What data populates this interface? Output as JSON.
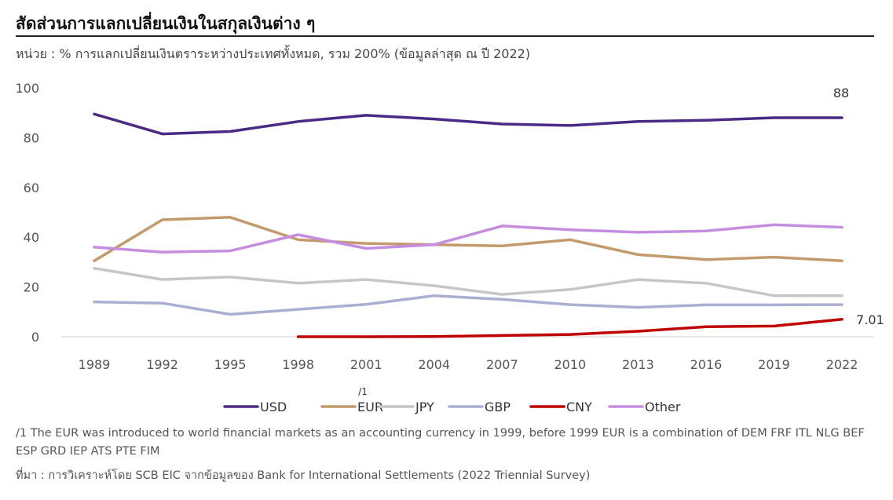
{
  "header": {
    "title": "สัดส่วนการแลกเปลี่ยนเงินในสกุลเงินต่าง ๆ",
    "subtitle": "หน่วย : % การแลกเปลี่ยนเงินตราระหว่างประเทศทั้งหมด, รวม 200% (ข้อมูลล่าสุด ณ ปี 2022)"
  },
  "chart_data": {
    "type": "line",
    "x": [
      "1989",
      "1992",
      "1995",
      "1998",
      "2001",
      "2004",
      "2007",
      "2010",
      "2013",
      "2016",
      "2019",
      "2022"
    ],
    "yticks": [
      0,
      20,
      40,
      60,
      80,
      100
    ],
    "ylim": [
      0,
      100
    ],
    "grid": false,
    "legend_position": "bottom",
    "series": [
      {
        "name": "USD",
        "color": "#4b2a86",
        "values": [
          89.5,
          81.5,
          82.5,
          86.5,
          89,
          87.5,
          85.5,
          84.9,
          86.5,
          87,
          88,
          88
        ]
      },
      {
        "name": "EUR",
        "color": "#c49a6c",
        "values": [
          30.5,
          47,
          48,
          39,
          37.5,
          37,
          36.5,
          39,
          33,
          31,
          32,
          30.5
        ]
      },
      {
        "name": "JPY",
        "color": "#c6c6c6",
        "values": [
          27.5,
          23,
          24,
          21.5,
          23,
          20.5,
          17,
          19,
          23,
          21.5,
          16.5,
          16.5
        ]
      },
      {
        "name": "GBP",
        "color": "#aaaed3",
        "values": [
          14,
          13.5,
          9,
          11,
          13,
          16.5,
          15,
          12.9,
          11.8,
          12.8,
          12.8,
          12.9
        ]
      },
      {
        "name": "CNY",
        "color": "#c00000",
        "values": [
          null,
          null,
          null,
          0,
          0,
          0.1,
          0.5,
          0.9,
          2.2,
          4,
          4.3,
          7.01
        ]
      },
      {
        "name": "Other",
        "color": "#c58de0",
        "values": [
          36,
          34,
          34.5,
          41,
          35.5,
          37,
          44.5,
          43,
          42,
          42.5,
          45,
          44
        ]
      }
    ],
    "annotations": {
      "usd_end": "88",
      "cny_end": "7.01",
      "eur_note": "/1"
    }
  },
  "footnotes": {
    "note1": "/1 The EUR was introduced to world financial markets as an accounting currency in 1999, before 1999 EUR is a combination of DEM FRF ITL NLG BEF ESP GRD IEP ATS PTE FIM",
    "source": "ที่มา : การวิเคราะห์โดย SCB EIC จากข้อมูลของ Bank for International Settlements (2022 Triennial Survey)"
  }
}
